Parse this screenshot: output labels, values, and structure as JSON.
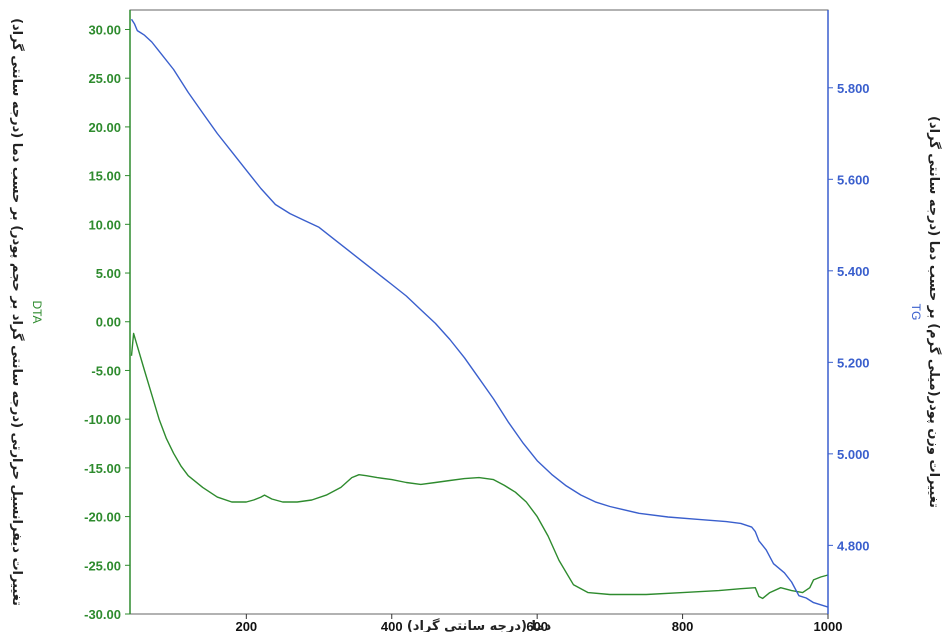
{
  "chart_data": {
    "type": "line",
    "xlabel": "دما (درجه سانتی گراد)",
    "y_left_label": "تغییرات دیفرانسیل حرارتی (درجه سانتی گراد بر حجم پودر) بر حسب دما (درجه سانتی گراد)",
    "y_right_label": "تغییرات وزن پودر(میلی گرم) بر حسب دما (درجه سانتی گراد)",
    "xlim": [
      40,
      1000
    ],
    "ylim_left": [
      -30,
      32
    ],
    "ylim_right": [
      4.65,
      5.97
    ],
    "x_ticks": [
      "200",
      "400",
      "600",
      "800",
      "1000"
    ],
    "y_left_ticks": [
      "30.00",
      "25.00",
      "20.00",
      "15.00",
      "10.00",
      "5.00",
      "0.00",
      "-5.00",
      "-10.00",
      "-15.00",
      "-20.00",
      "-25.00",
      "-30.00"
    ],
    "y_right_ticks": [
      "5.800",
      "5.600",
      "5.400",
      "5.200",
      "5.000",
      "4.800"
    ],
    "colors": {
      "DTA": "#2e8b2e",
      "TG": "#3a5fcd"
    },
    "series": [
      {
        "name": "DTA",
        "axis": "left",
        "x": [
          42,
          45,
          50,
          60,
          70,
          80,
          90,
          100,
          110,
          120,
          140,
          160,
          180,
          200,
          210,
          220,
          225,
          235,
          250,
          270,
          290,
          310,
          330,
          345,
          355,
          365,
          380,
          400,
          420,
          440,
          460,
          480,
          500,
          520,
          540,
          555,
          570,
          585,
          600,
          615,
          630,
          650,
          670,
          700,
          750,
          800,
          850,
          880,
          900,
          905,
          910,
          920,
          935,
          950,
          965,
          975,
          980,
          990,
          1000
        ],
        "y": [
          -3.5,
          -1.2,
          -2.5,
          -5,
          -7.5,
          -10,
          -12,
          -13.5,
          -14.8,
          -15.8,
          -17,
          -18,
          -18.5,
          -18.5,
          -18.3,
          -18,
          -17.8,
          -18.2,
          -18.5,
          -18.5,
          -18.3,
          -17.8,
          -17,
          -16,
          -15.7,
          -15.8,
          -16,
          -16.2,
          -16.5,
          -16.7,
          -16.5,
          -16.3,
          -16.1,
          -16,
          -16.2,
          -16.8,
          -17.5,
          -18.5,
          -20,
          -22,
          -24.5,
          -27,
          -27.8,
          -28,
          -28,
          -27.8,
          -27.6,
          -27.4,
          -27.3,
          -28.2,
          -28.4,
          -27.8,
          -27.3,
          -27.6,
          -27.8,
          -27.3,
          -26.5,
          -26.2,
          -26.0
        ]
      },
      {
        "name": "TG",
        "axis": "right",
        "x": [
          42,
          46,
          50,
          55,
          60,
          70,
          80,
          100,
          120,
          140,
          160,
          180,
          200,
          220,
          240,
          260,
          280,
          300,
          320,
          340,
          360,
          380,
          400,
          420,
          440,
          460,
          480,
          500,
          520,
          540,
          560,
          580,
          600,
          620,
          640,
          660,
          680,
          700,
          740,
          780,
          820,
          860,
          880,
          895,
          900,
          905,
          915,
          925,
          940,
          950,
          960,
          970,
          980,
          1000
        ],
        "y": [
          5.95,
          5.94,
          5.925,
          5.92,
          5.915,
          5.9,
          5.88,
          5.84,
          5.79,
          5.745,
          5.7,
          5.66,
          5.62,
          5.58,
          5.545,
          5.525,
          5.51,
          5.495,
          5.47,
          5.445,
          5.42,
          5.395,
          5.37,
          5.345,
          5.315,
          5.285,
          5.25,
          5.21,
          5.165,
          5.12,
          5.07,
          5.025,
          4.985,
          4.955,
          4.93,
          4.91,
          4.895,
          4.885,
          4.87,
          4.862,
          4.857,
          4.852,
          4.848,
          4.84,
          4.83,
          4.81,
          4.79,
          4.76,
          4.74,
          4.72,
          4.69,
          4.685,
          4.675,
          4.665
        ]
      }
    ]
  }
}
